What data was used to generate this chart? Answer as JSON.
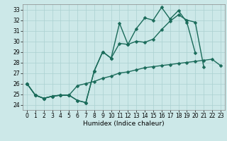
{
  "xlabel": "Humidex (Indice chaleur)",
  "xlim": [
    -0.5,
    23.5
  ],
  "ylim": [
    23.5,
    33.5
  ],
  "yticks": [
    24,
    25,
    26,
    27,
    28,
    29,
    30,
    31,
    32,
    33
  ],
  "xticks": [
    0,
    1,
    2,
    3,
    4,
    5,
    6,
    7,
    8,
    9,
    10,
    11,
    12,
    13,
    14,
    15,
    16,
    17,
    18,
    19,
    20,
    21,
    22,
    23
  ],
  "bg_color": "#cce8e8",
  "grid_color": "#aad0d0",
  "line_color": "#1a6b5a",
  "line1_y": [
    26.0,
    24.9,
    24.6,
    24.8,
    24.9,
    24.9,
    24.4,
    24.2,
    27.2,
    29.0,
    28.4,
    31.7,
    29.7,
    31.2,
    32.2,
    32.0,
    33.2,
    32.1,
    32.9,
    31.8,
    28.9,
    null,
    null,
    null
  ],
  "line2_y": [
    26.0,
    24.9,
    24.6,
    24.8,
    24.9,
    24.9,
    24.4,
    24.2,
    27.2,
    29.0,
    28.4,
    29.8,
    29.7,
    30.0,
    29.9,
    30.2,
    31.1,
    31.9,
    32.5,
    32.0,
    31.8,
    27.6,
    null,
    null
  ],
  "line3_y": [
    26.0,
    24.9,
    24.6,
    24.8,
    24.9,
    24.9,
    25.8,
    26.0,
    26.2,
    26.5,
    26.7,
    27.0,
    27.1,
    27.3,
    27.5,
    27.6,
    27.7,
    27.8,
    27.9,
    28.0,
    28.1,
    28.2,
    28.3,
    27.7
  ],
  "tick_fontsize": 5.5,
  "label_fontsize": 6.5,
  "lw": 1.0,
  "marker_size": 2.5
}
